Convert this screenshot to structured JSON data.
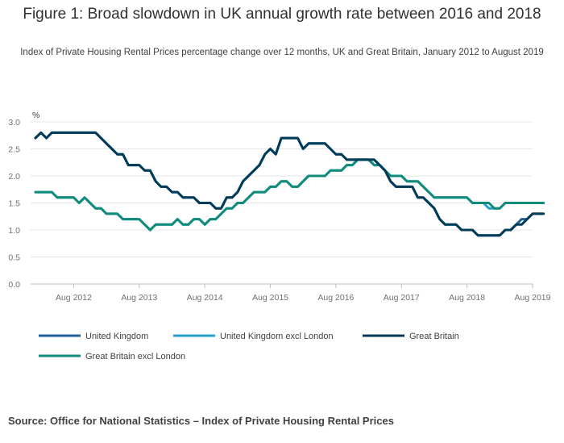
{
  "title": "Figure 1: Broad slowdown in UK annual growth rate between 2016 and 2018",
  "subtitle": "Index of Private Housing Rental Prices percentage change over 12 months, UK and Great Britain, January 2012 to August 2019",
  "source": "Source: Office for National Statistics – Index of Private Housing Rental Prices",
  "chart_data": {
    "type": "line",
    "x_start": "2012-01",
    "x_end": "2019-08",
    "x_tick_labels": [
      "Aug 2012",
      "Aug 2013",
      "Aug 2014",
      "Aug 2015",
      "Aug 2016",
      "Aug 2017",
      "Aug 2018",
      "Aug 2019"
    ],
    "y_tick_labels": [
      "0.0",
      "0.5",
      "1.0",
      "1.5",
      "2.0",
      "2.5",
      "3.0"
    ],
    "y_unit_label": "%",
    "ylim": [
      0,
      3
    ],
    "grid": true,
    "legend_position": "bottom",
    "series": [
      {
        "name": "United Kingdom",
        "color": "#206095",
        "values": [
          2.7,
          2.8,
          2.7,
          2.8,
          2.8,
          2.8,
          2.8,
          2.8,
          2.8,
          2.8,
          2.8,
          2.8,
          2.7,
          2.6,
          2.5,
          2.4,
          2.4,
          2.2,
          2.2,
          2.2,
          2.1,
          2.1,
          1.9,
          1.8,
          1.8,
          1.7,
          1.7,
          1.6,
          1.6,
          1.6,
          1.5,
          1.5,
          1.5,
          1.4,
          1.4,
          1.6,
          1.6,
          1.7,
          1.9,
          2.0,
          2.1,
          2.2,
          2.4,
          2.5,
          2.4,
          2.7,
          2.7,
          2.7,
          2.7,
          2.5,
          2.6,
          2.6,
          2.6,
          2.6,
          2.5,
          2.4,
          2.4,
          2.3,
          2.3,
          2.3,
          2.3,
          2.3,
          2.3,
          2.2,
          2.1,
          1.9,
          1.8,
          1.8,
          1.8,
          1.8,
          1.6,
          1.6,
          1.5,
          1.4,
          1.2,
          1.1,
          1.1,
          1.1,
          1.0,
          1.0,
          1.0,
          0.9,
          0.9,
          0.9,
          0.9,
          0.9,
          1.0,
          1.0,
          1.1,
          1.2,
          1.2,
          1.3,
          1.3,
          1.3
        ]
      },
      {
        "name": "United Kingdom excl London",
        "color": "#27a0cc",
        "values": [
          1.7,
          1.7,
          1.7,
          1.7,
          1.6,
          1.6,
          1.6,
          1.6,
          1.5,
          1.6,
          1.5,
          1.4,
          1.4,
          1.3,
          1.3,
          1.3,
          1.2,
          1.2,
          1.2,
          1.2,
          1.1,
          1.0,
          1.1,
          1.1,
          1.1,
          1.1,
          1.2,
          1.1,
          1.1,
          1.2,
          1.2,
          1.1,
          1.2,
          1.2,
          1.3,
          1.4,
          1.4,
          1.5,
          1.5,
          1.6,
          1.7,
          1.7,
          1.7,
          1.8,
          1.8,
          1.9,
          1.9,
          1.8,
          1.8,
          1.9,
          2.0,
          2.0,
          2.0,
          2.0,
          2.1,
          2.1,
          2.1,
          2.2,
          2.2,
          2.3,
          2.3,
          2.3,
          2.2,
          2.2,
          2.1,
          2.0,
          2.0,
          2.0,
          1.9,
          1.9,
          1.9,
          1.8,
          1.7,
          1.6,
          1.6,
          1.6,
          1.6,
          1.6,
          1.6,
          1.6,
          1.5,
          1.5,
          1.5,
          1.4,
          1.4,
          1.4,
          1.5,
          1.5,
          1.5,
          1.5,
          1.5,
          1.5,
          1.5,
          1.5
        ]
      },
      {
        "name": "Great Britain",
        "color": "#003c57",
        "values": [
          2.7,
          2.8,
          2.7,
          2.8,
          2.8,
          2.8,
          2.8,
          2.8,
          2.8,
          2.8,
          2.8,
          2.8,
          2.7,
          2.6,
          2.5,
          2.4,
          2.4,
          2.2,
          2.2,
          2.2,
          2.1,
          2.1,
          1.9,
          1.8,
          1.8,
          1.7,
          1.7,
          1.6,
          1.6,
          1.6,
          1.5,
          1.5,
          1.5,
          1.4,
          1.4,
          1.6,
          1.6,
          1.7,
          1.9,
          2.0,
          2.1,
          2.2,
          2.4,
          2.5,
          2.4,
          2.7,
          2.7,
          2.7,
          2.7,
          2.5,
          2.6,
          2.6,
          2.6,
          2.6,
          2.5,
          2.4,
          2.4,
          2.3,
          2.3,
          2.3,
          2.3,
          2.3,
          2.3,
          2.2,
          2.1,
          1.9,
          1.8,
          1.8,
          1.8,
          1.8,
          1.6,
          1.6,
          1.5,
          1.4,
          1.2,
          1.1,
          1.1,
          1.1,
          1.0,
          1.0,
          1.0,
          0.9,
          0.9,
          0.9,
          0.9,
          0.9,
          1.0,
          1.0,
          1.1,
          1.1,
          1.2,
          1.3,
          1.3,
          1.3
        ]
      },
      {
        "name": "Great Britain excl London",
        "color": "#118c7b",
        "values": [
          1.7,
          1.7,
          1.7,
          1.7,
          1.6,
          1.6,
          1.6,
          1.6,
          1.5,
          1.6,
          1.5,
          1.4,
          1.4,
          1.3,
          1.3,
          1.3,
          1.2,
          1.2,
          1.2,
          1.2,
          1.1,
          1.0,
          1.1,
          1.1,
          1.1,
          1.1,
          1.2,
          1.1,
          1.1,
          1.2,
          1.2,
          1.1,
          1.2,
          1.2,
          1.3,
          1.4,
          1.4,
          1.5,
          1.5,
          1.6,
          1.7,
          1.7,
          1.7,
          1.8,
          1.8,
          1.9,
          1.9,
          1.8,
          1.8,
          1.9,
          2.0,
          2.0,
          2.0,
          2.0,
          2.1,
          2.1,
          2.1,
          2.2,
          2.2,
          2.3,
          2.3,
          2.3,
          2.2,
          2.2,
          2.1,
          2.0,
          2.0,
          2.0,
          1.9,
          1.9,
          1.9,
          1.8,
          1.7,
          1.6,
          1.6,
          1.6,
          1.6,
          1.6,
          1.6,
          1.6,
          1.5,
          1.5,
          1.5,
          1.5,
          1.4,
          1.4,
          1.5,
          1.5,
          1.5,
          1.5,
          1.5,
          1.5,
          1.5,
          1.5
        ]
      }
    ]
  }
}
